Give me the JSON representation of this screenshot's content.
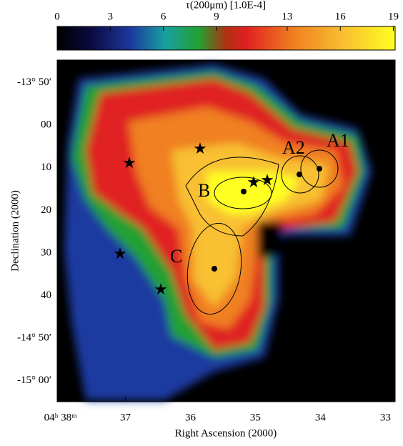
{
  "chart_data": {
    "type": "image",
    "colorbar": {
      "label": "τ(200μm) [1.0E-4]",
      "lim": [
        0,
        19.1
      ],
      "ticks": [
        0,
        3,
        6,
        9,
        13,
        16,
        19
      ]
    },
    "xlabel": "Right Ascension (2000)",
    "xlim": [
      38.05,
      32.85
    ],
    "xticks": [
      {
        "value": 38,
        "label": "04ʰ 38ᵐ"
      },
      37,
      36,
      35,
      34,
      33
    ],
    "ylabel": "Declination (2000)",
    "ylim": [
      -904.9,
      -824.7
    ],
    "yticks": [
      {
        "value": -830,
        "label": "-13° 50′"
      },
      {
        "value": -840,
        "label": "00"
      },
      {
        "value": -850,
        "label": "10"
      },
      {
        "value": -860,
        "label": "20"
      },
      {
        "value": -870,
        "label": "30"
      },
      {
        "value": -880,
        "label": "40"
      },
      {
        "value": -890,
        "label": "-14° 50′"
      },
      {
        "value": -900,
        "label": "-15° 00′"
      }
    ],
    "annotations": [
      "A1",
      "A2",
      "B",
      "C"
    ]
  }
}
